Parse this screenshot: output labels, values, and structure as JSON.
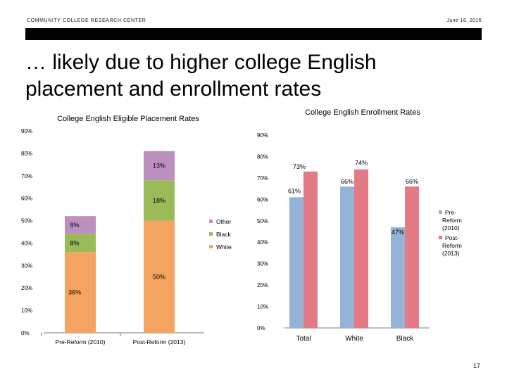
{
  "header": {
    "org": "COMMUNITY COLLEGE RESEARCH CENTER",
    "date": "June 16, 2016"
  },
  "slide": {
    "title_line1": "… likely due to higher college English",
    "title_line2": "placement and enrollment rates",
    "page_number": "17"
  },
  "chart_data": [
    {
      "type": "bar",
      "stacked": true,
      "title": "College English Eligible Placement Rates",
      "categories": [
        "Pre-Reform (2010)",
        "Post-Reform (2013)"
      ],
      "series": [
        {
          "name": "White",
          "values": [
            36,
            50
          ],
          "labels": [
            "36%",
            "50%"
          ],
          "color": "#f4a460"
        },
        {
          "name": "Black",
          "values": [
            8,
            18
          ],
          "labels": [
            "8%",
            "18%"
          ],
          "color": "#9bbb59"
        },
        {
          "name": "Other",
          "values": [
            8,
            13
          ],
          "labels": [
            "8%",
            "13%"
          ],
          "color": "#bc8fbf"
        }
      ],
      "yticks": [
        "0%",
        "10%",
        "20%",
        "30%",
        "40%",
        "50%",
        "60%",
        "70%",
        "80%",
        "90%"
      ],
      "ylim": [
        0,
        90
      ],
      "legend": "right",
      "grid": false
    },
    {
      "type": "bar",
      "title": "College English Enrollment Rates",
      "categories": [
        "Total",
        "White",
        "Black"
      ],
      "series": [
        {
          "name": "Pre-Reform (2010)",
          "values": [
            61,
            66,
            47
          ],
          "labels": [
            "61%",
            "66%",
            "47%"
          ],
          "color": "#95b3d7"
        },
        {
          "name": "Post-Reform (2013)",
          "values": [
            73,
            74,
            66
          ],
          "labels": [
            "73%",
            "74%",
            "66%"
          ],
          "color": "#e47a85"
        }
      ],
      "yticks": [
        "0%",
        "10%",
        "20%",
        "30%",
        "40%",
        "50%",
        "60%",
        "70%",
        "80%",
        "90%"
      ],
      "ylim": [
        0,
        90
      ],
      "legend": "right",
      "grid": false
    }
  ]
}
